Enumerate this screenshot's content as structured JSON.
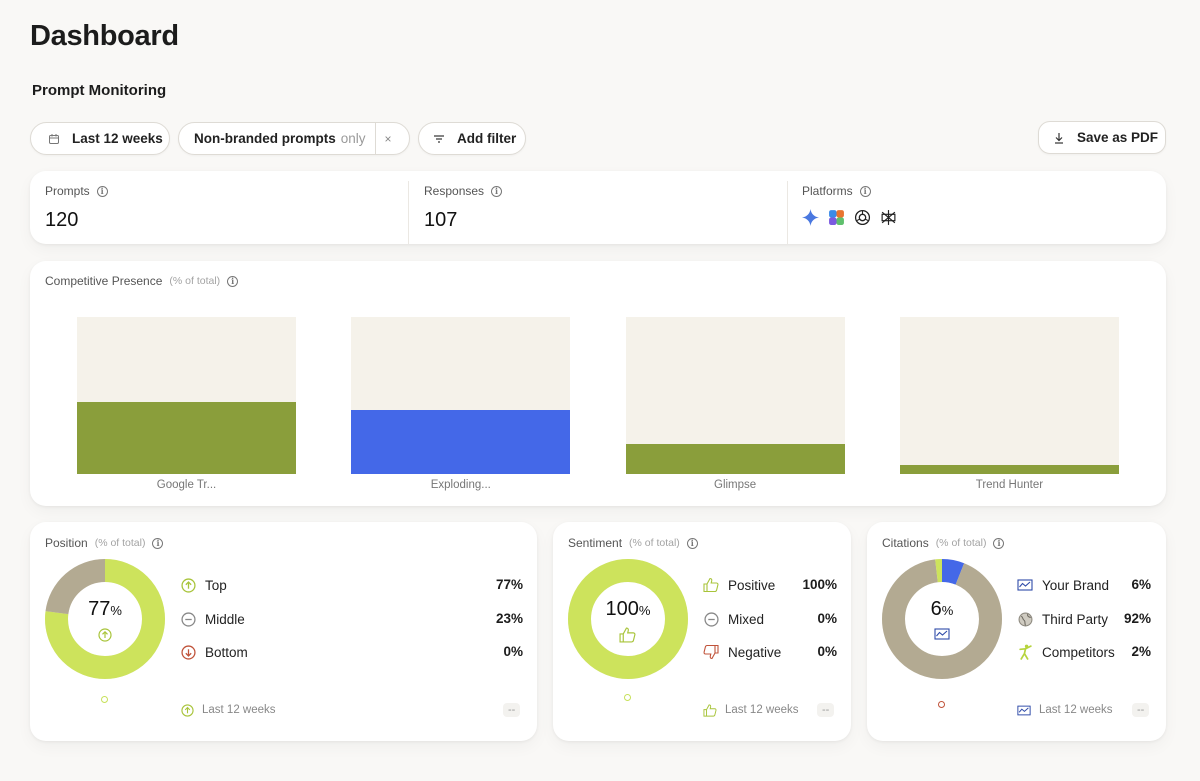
{
  "page": {
    "title": "Dashboard",
    "section": "Prompt Monitoring"
  },
  "filters": {
    "range": "Last 12 weeks",
    "prompt_type": "Non-branded prompts",
    "prompt_type_suffix": "only",
    "clear": "×",
    "add_filter": "Add filter",
    "save_pdf": "Save as PDF"
  },
  "stats": {
    "prompts": {
      "label": "Prompts",
      "value": "120"
    },
    "responses": {
      "label": "Responses",
      "value": "107"
    },
    "platforms": {
      "label": "Platforms",
      "icons": [
        "gemini-icon",
        "copilot-icon",
        "chatgpt-icon",
        "perplexity-icon"
      ]
    }
  },
  "competitive": {
    "label": "Competitive Presence",
    "sub": "(% of total)",
    "chart_data": {
      "type": "bar",
      "categories": [
        "Google Tr...",
        "Exploding...",
        "Glimpse",
        "Trend Hunter"
      ],
      "values": [
        46,
        41,
        19,
        6
      ],
      "ylim": [
        0,
        100
      ],
      "colors": [
        "#8a9e3b",
        "#4468e8",
        "#8a9e3b",
        "#8a9e3b"
      ],
      "track_color": "#f5f2ea",
      "grid": false
    }
  },
  "position": {
    "label": "Position",
    "sub": "(% of total)",
    "center_value": "77",
    "center_unit": "%",
    "items": [
      {
        "label": "Top",
        "value": "77%"
      },
      {
        "label": "Middle",
        "value": "23%"
      },
      {
        "label": "Bottom",
        "value": "0%"
      }
    ],
    "chart_data": {
      "type": "pie",
      "categories": [
        "Top",
        "Middle",
        "Bottom"
      ],
      "values": [
        77,
        23,
        0
      ],
      "colors": [
        "#cde35c",
        "#b3aa92",
        "#c0533a"
      ]
    },
    "footer": "Last 12 weeks",
    "footer_value": "--"
  },
  "sentiment": {
    "label": "Sentiment",
    "sub": "(% of total)",
    "center_value": "100",
    "center_unit": "%",
    "items": [
      {
        "label": "Positive",
        "value": "100%"
      },
      {
        "label": "Mixed",
        "value": "0%"
      },
      {
        "label": "Negative",
        "value": "0%"
      }
    ],
    "chart_data": {
      "type": "pie",
      "categories": [
        "Positive",
        "Mixed",
        "Negative"
      ],
      "values": [
        100,
        0,
        0
      ],
      "colors": [
        "#cde35c",
        "#999999",
        "#c0533a"
      ]
    },
    "footer": "Last 12 weeks",
    "footer_value": "--"
  },
  "citations": {
    "label": "Citations",
    "sub": "(% of total)",
    "center_value": "6",
    "center_unit": "%",
    "items": [
      {
        "label": "Your Brand",
        "value": "6%"
      },
      {
        "label": "Third Party",
        "value": "92%"
      },
      {
        "label": "Competitors",
        "value": "2%"
      }
    ],
    "chart_data": {
      "type": "pie",
      "categories": [
        "Your Brand",
        "Third Party",
        "Competitors"
      ],
      "values": [
        6,
        92,
        2
      ],
      "colors": [
        "#4468e8",
        "#b3aa92",
        "#cde35c"
      ]
    },
    "footer": "Last 12 weeks",
    "footer_value": "--"
  }
}
